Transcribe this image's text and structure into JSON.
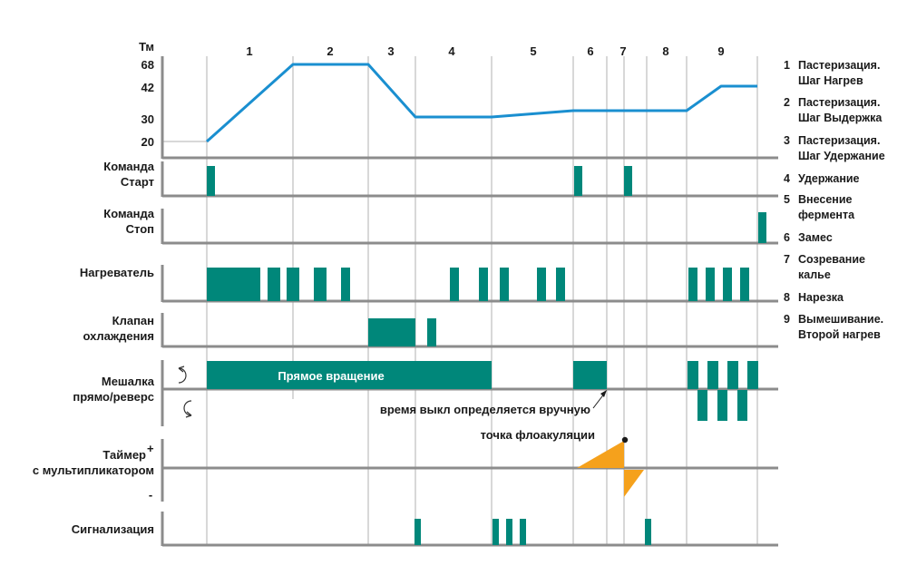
{
  "colors": {
    "teal": "#00877a",
    "orange": "#f5a11c",
    "blue": "#1a8fd0",
    "axis": "#8c8c8c",
    "grid": "#b0b0b0",
    "text": "#1a1a1a"
  },
  "axis": {
    "title": "Тм",
    "ticks": [
      "68",
      "42",
      "30",
      "20"
    ]
  },
  "phases": [
    "1",
    "2",
    "3",
    "4",
    "5",
    "6",
    "7",
    "8",
    "9"
  ],
  "rows": {
    "start": [
      "Команда",
      "Старт"
    ],
    "stop": [
      "Команда",
      "Стоп"
    ],
    "heater": [
      "Нагреватель"
    ],
    "valve": [
      "Клапан",
      "охлаждения"
    ],
    "mixer": [
      "Мешалка",
      "прямо/реверс"
    ],
    "timer": [
      "Таймер",
      "с мультипликатором"
    ],
    "alarm": [
      "Сигнализация"
    ]
  },
  "timer_plus": "+",
  "timer_minus": "-",
  "icons": {
    "forward": "rotate-cw-icon",
    "reverse": "rotate-ccw-icon"
  },
  "annotations": {
    "forward_rotation": "Прямое вращение",
    "off_time": "время выкл определяется вручную",
    "flocculation": "точка флоакуляции"
  },
  "legend": [
    {
      "num": "1",
      "lines": [
        "Пастеризация.",
        "Шаг Нагрев"
      ]
    },
    {
      "num": "2",
      "lines": [
        "Пастеризация.",
        "Шаг Выдержка"
      ]
    },
    {
      "num": "3",
      "lines": [
        "Пастеризация.",
        "Шаг Удержание"
      ]
    },
    {
      "num": "4",
      "lines": [
        "Удержание"
      ]
    },
    {
      "num": "5",
      "lines": [
        "Внесение",
        "фермента"
      ]
    },
    {
      "num": "6",
      "lines": [
        "Замес"
      ]
    },
    {
      "num": "7",
      "lines": [
        "Созревание",
        "калье"
      ]
    },
    {
      "num": "8",
      "lines": [
        "Нарезка"
      ]
    },
    {
      "num": "9",
      "lines": [
        "Вымешивание.",
        "Второй нагрев"
      ]
    }
  ]
}
